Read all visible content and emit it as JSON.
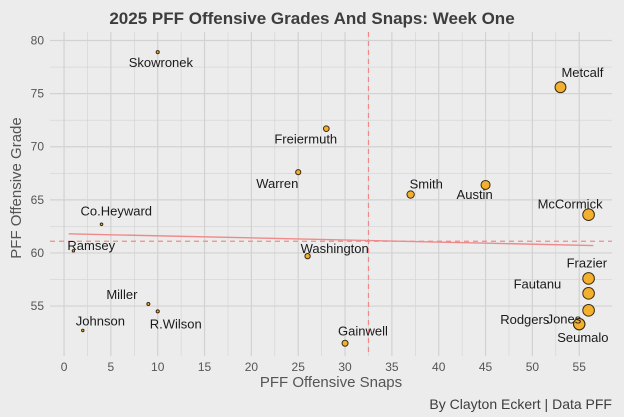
{
  "chart_data": {
    "type": "scatter",
    "title": "2025 PFF Offensive Grades And Snaps: Week One",
    "xlabel": "PFF Offensive Snaps",
    "ylabel": "PFF Offensive Grade",
    "caption": "By Clayton Eckert | Data PFF",
    "xlim": [
      -1.5,
      58.5
    ],
    "ylim": [
      50.3,
      80.8
    ],
    "x_ticks": [
      0,
      5,
      10,
      15,
      20,
      25,
      30,
      35,
      40,
      45,
      50,
      55
    ],
    "y_ticks": [
      55,
      60,
      65,
      70,
      75,
      80
    ],
    "grid": true,
    "reference_lines": {
      "x_mean": 32.5,
      "y_mean": 61.1
    },
    "trend_line": {
      "x": [
        0.5,
        56.5
      ],
      "y": [
        61.8,
        60.7
      ]
    },
    "colors": {
      "point_fill": "#f2b02e",
      "point_stroke": "#3a2a10",
      "reference": "#f08a8a",
      "trend": "#f08a8a",
      "grid": "#d2d2d2"
    },
    "points": [
      {
        "name": "Skowronek",
        "x": 10,
        "y": 78.9
      },
      {
        "name": "Metcalf",
        "x": 53,
        "y": 75.6
      },
      {
        "name": "Freiermuth",
        "x": 28,
        "y": 71.7
      },
      {
        "name": "Warren",
        "x": 25,
        "y": 67.6
      },
      {
        "name": "Smith",
        "x": 37,
        "y": 65.5
      },
      {
        "name": "Austin",
        "x": 45,
        "y": 66.4
      },
      {
        "name": "McCormick",
        "x": 56,
        "y": 63.6
      },
      {
        "name": "Co.Heyward",
        "x": 4,
        "y": 62.7
      },
      {
        "name": "Ramsey",
        "x": 1,
        "y": 60.2
      },
      {
        "name": "Washington",
        "x": 26,
        "y": 59.7
      },
      {
        "name": "Frazier",
        "x": 56,
        "y": 57.6
      },
      {
        "name": "Fautanu",
        "x": 56,
        "y": 56.2
      },
      {
        "name": "Jones",
        "x": 56,
        "y": 54.6
      },
      {
        "name": "Rodgers",
        "x": 55,
        "y": 53.3
      },
      {
        "name": "Seumalo",
        "x": 55,
        "y": 53.3
      },
      {
        "name": "Miller",
        "x": 9,
        "y": 55.2
      },
      {
        "name": "R.Wilson",
        "x": 10,
        "y": 54.5
      },
      {
        "name": "Johnson",
        "x": 2,
        "y": 52.7
      },
      {
        "name": "Gainwell",
        "x": 30,
        "y": 51.5
      }
    ]
  }
}
